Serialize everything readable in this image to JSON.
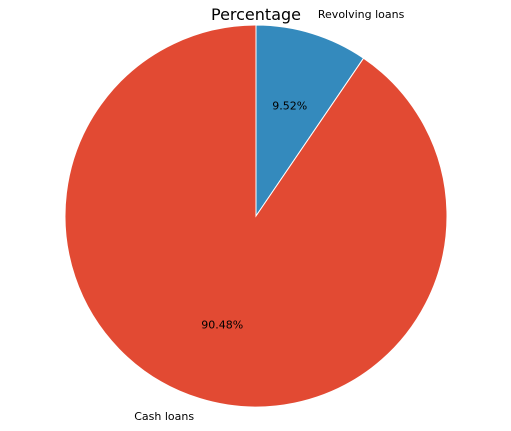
{
  "chart_data": {
    "type": "pie",
    "title": "Percentage",
    "labels": [
      "Revolving loans",
      "Cash loans"
    ],
    "values": [
      9.52,
      90.48
    ],
    "percent_labels": [
      "9.52%",
      "90.48%"
    ],
    "colors": [
      "#348ABD",
      "#E24A33"
    ],
    "start_angle": "90 (top, clockwise)",
    "legend": "none"
  }
}
